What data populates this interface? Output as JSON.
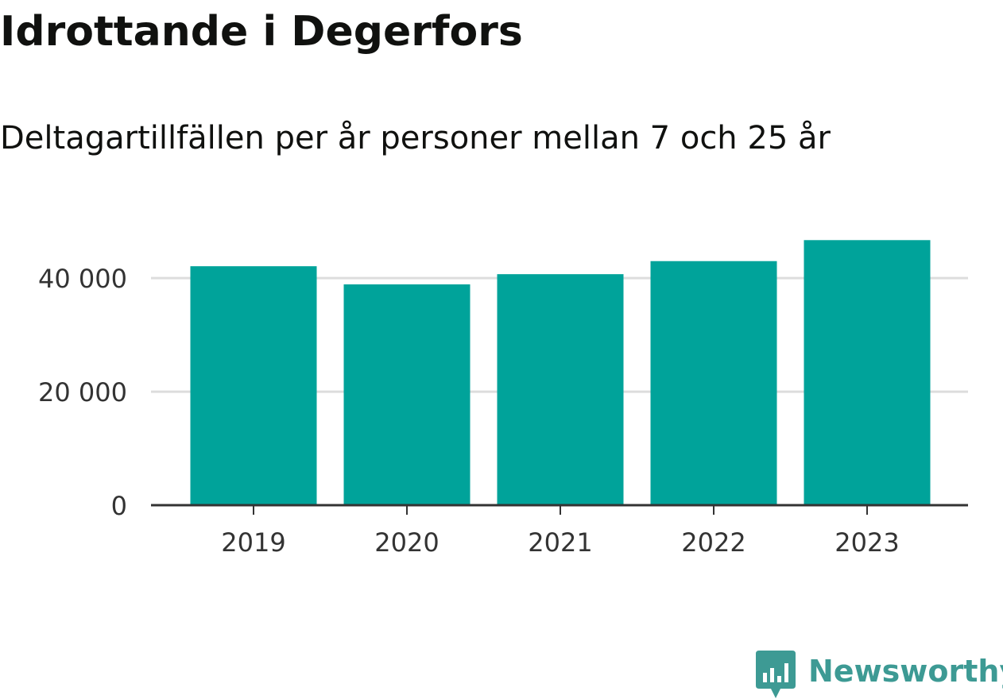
{
  "chart_data": {
    "type": "bar",
    "title": "Idrottande i Degerfors",
    "subtitle": "Deltagartillfällen per år personer mellan 7 och 25 år",
    "categories": [
      "2019",
      "2020",
      "2021",
      "2022",
      "2023"
    ],
    "values": [
      42100,
      38900,
      40700,
      43000,
      46700
    ],
    "ylim": [
      0,
      48000
    ],
    "yticks": [
      0,
      20000,
      40000
    ],
    "ytick_labels": [
      "0",
      "20 000",
      "40 000"
    ],
    "grid": true,
    "bar_color": "#00a39a",
    "gridline_color": "#dddddd",
    "axis_color": "#333333"
  },
  "branding": {
    "logo_text": "Newsworthy",
    "logo_color": "#3d9a94",
    "logo_icon": "bar-chart-badge-icon"
  }
}
